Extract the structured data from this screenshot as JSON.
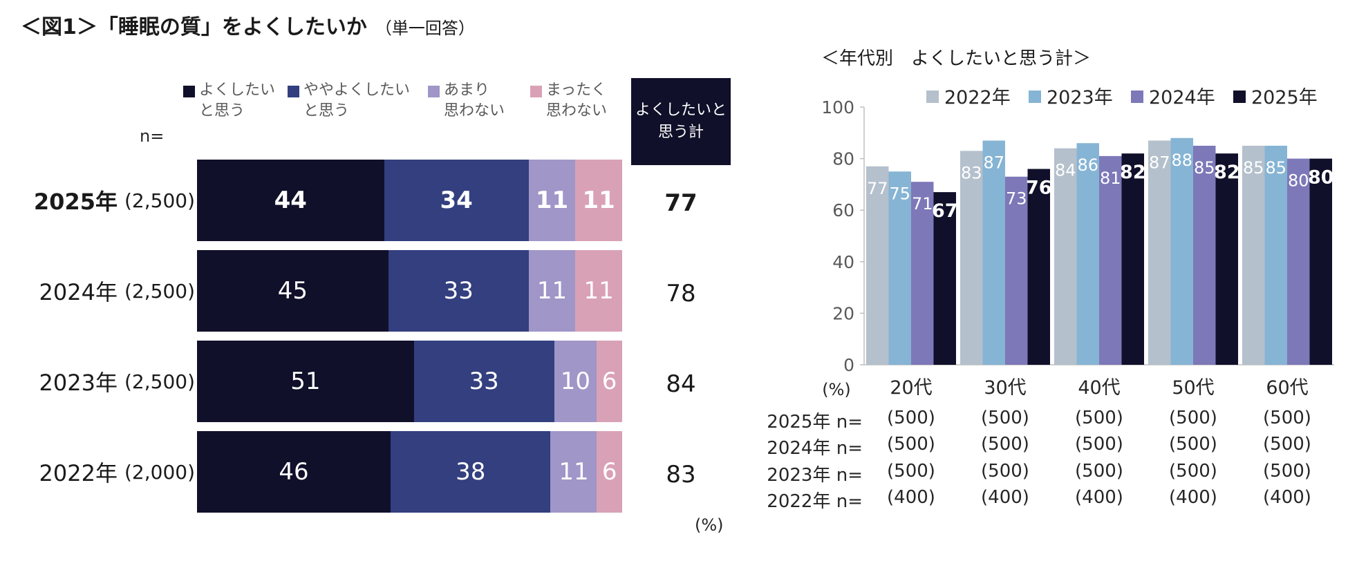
{
  "title": "＜図1＞「睡眠の質」をよくしたいか",
  "title_sub": "（単一回答）",
  "left_chart": {
    "n_label": "n=",
    "legend": [
      {
        "label": "よくしたい\nと思う",
        "color": "#10102a"
      },
      {
        "label": "ややよくしたい\nと思う",
        "color": "#333f7f"
      },
      {
        "label": "あまり\n思わない",
        "color": "#a096c8"
      },
      {
        "label": "まったく\n思わない",
        "color": "#d9a1b6"
      }
    ],
    "total_header": "よくしたいと\n思う計",
    "pct_unit": "(%)"
  },
  "chart_data": [
    {
      "type": "bar",
      "orientation": "horizontal",
      "stacked": true,
      "title": "＜図1＞「睡眠の質」をよくしたいか（単一回答）",
      "categories": [
        "2025年",
        "2024年",
        "2023年",
        "2022年"
      ],
      "sample_sizes": [
        "(2,500)",
        "(2,500)",
        "(2,500)",
        "(2,000)"
      ],
      "series": [
        {
          "name": "よくしたいと思う",
          "values": [
            44,
            45,
            51,
            46
          ],
          "color": "#10102a"
        },
        {
          "name": "ややよくしたいと思う",
          "values": [
            34,
            33,
            33,
            38
          ],
          "color": "#333f7f"
        },
        {
          "name": "あまり思わない",
          "values": [
            11,
            11,
            10,
            11
          ],
          "color": "#a096c8"
        },
        {
          "name": "まったく思わない",
          "values": [
            11,
            11,
            6,
            6
          ],
          "color": "#d9a1b6"
        }
      ],
      "totals": {
        "label": "よくしたいと思う計",
        "values": [
          77,
          78,
          84,
          83
        ]
      },
      "highlight_category": "2025年",
      "unit": "(%)"
    },
    {
      "type": "bar",
      "orientation": "vertical",
      "title": "＜年代別　よくしたいと思う計＞",
      "categories": [
        "20代",
        "30代",
        "40代",
        "50代",
        "60代"
      ],
      "series": [
        {
          "name": "2022年",
          "values": [
            77,
            83,
            84,
            87,
            85
          ],
          "color": "#b4c0cc"
        },
        {
          "name": "2023年",
          "values": [
            75,
            87,
            86,
            88,
            85
          ],
          "color": "#86b4d4"
        },
        {
          "name": "2024年",
          "values": [
            71,
            73,
            81,
            85,
            80
          ],
          "color": "#7d78b8"
        },
        {
          "name": "2025年",
          "values": [
            67,
            76,
            82,
            82,
            80
          ],
          "color": "#10102a"
        }
      ],
      "ylim": [
        0,
        100
      ],
      "yticks": [
        0,
        20,
        40,
        60,
        80,
        100
      ],
      "ylabel": "(%)",
      "legend_position": "top",
      "sample_size_rows": [
        {
          "label": "2025年 n=",
          "values": [
            "(500)",
            "(500)",
            "(500)",
            "(500)",
            "(500)"
          ]
        },
        {
          "label": "2024年 n=",
          "values": [
            "(500)",
            "(500)",
            "(500)",
            "(500)",
            "(500)"
          ]
        },
        {
          "label": "2023年 n=",
          "values": [
            "(500)",
            "(500)",
            "(500)",
            "(500)",
            "(500)"
          ]
        },
        {
          "label": "2022年 n=",
          "values": [
            "(400)",
            "(400)",
            "(400)",
            "(400)",
            "(400)"
          ]
        }
      ]
    }
  ]
}
